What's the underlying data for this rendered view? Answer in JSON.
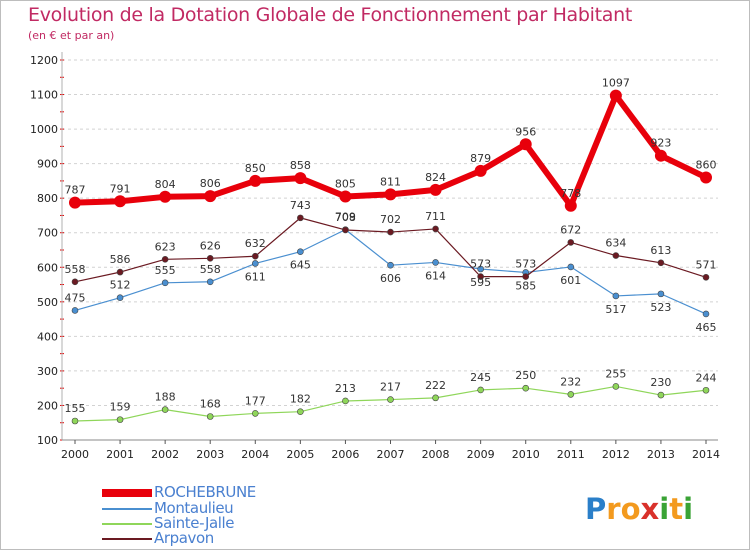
{
  "title": "Evolution de la Dotation Globale de Fonctionnement par Habitant",
  "subtitle": "(en € et par an)",
  "logo": {
    "text": "Proxiti",
    "letters": [
      {
        "ch": "P",
        "color": "#2a7fc9"
      },
      {
        "ch": "r",
        "color": "#f39a1e"
      },
      {
        "ch": "o",
        "color": "#f39a1e"
      },
      {
        "ch": "x",
        "color": "#d9312b"
      },
      {
        "ch": "i",
        "color": "#3aa335"
      },
      {
        "ch": "t",
        "color": "#f39a1e"
      },
      {
        "ch": "i",
        "color": "#3aa335"
      }
    ]
  },
  "chart_data": {
    "type": "line",
    "title": "Evolution de la Dotation Globale de Fonctionnement par Habitant",
    "subtitle": "(en € et par an)",
    "x": [
      "2000",
      "2001",
      "2002",
      "2003",
      "2004",
      "2005",
      "2006",
      "2007",
      "2008",
      "2009",
      "2010",
      "2011",
      "2012",
      "2013",
      "2014"
    ],
    "ylim": [
      100,
      1200
    ],
    "yticks": [
      100,
      200,
      300,
      400,
      500,
      600,
      700,
      800,
      900,
      1000,
      1100,
      1200
    ],
    "grid": "horizontal dashed",
    "legend_position": "bottom-left",
    "series": [
      {
        "name": "ROCHEBRUNE",
        "color": "#e8000b",
        "values": [
          787,
          791,
          804,
          806,
          850,
          858,
          805,
          811,
          824,
          879,
          956,
          778,
          1097,
          923,
          860
        ]
      },
      {
        "name": "Montaulieu",
        "color": "#4a8fd0",
        "values": [
          475,
          512,
          555,
          558,
          611,
          645,
          709,
          606,
          614,
          595,
          585,
          601,
          517,
          523,
          465
        ]
      },
      {
        "name": "Sainte-Jalle",
        "color": "#8fd65a",
        "values": [
          155,
          159,
          188,
          168,
          177,
          182,
          213,
          217,
          222,
          245,
          250,
          232,
          255,
          230,
          244
        ]
      },
      {
        "name": "Arpavon",
        "color": "#6b1a22",
        "values": [
          558,
          586,
          623,
          626,
          632,
          743,
          708,
          702,
          711,
          573,
          573,
          672,
          634,
          613,
          571
        ]
      }
    ]
  }
}
